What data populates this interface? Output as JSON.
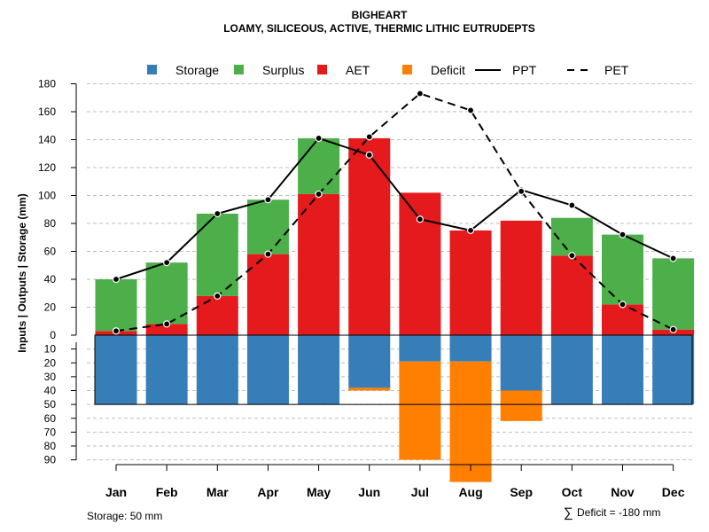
{
  "chart_data": {
    "type": "bar",
    "title": "BIGHEART",
    "subtitle": "LOAMY, SILICEOUS, ACTIVE, THERMIC LITHIC EUTRUDEPTS",
    "ylabel": "Inputs | Outputs | Storage    (mm)",
    "ylim_top": [
      0,
      180
    ],
    "ylim_bottom": [
      0,
      90
    ],
    "yticks_top": [
      "0",
      "20",
      "40",
      "60",
      "80",
      "100",
      "120",
      "140",
      "160",
      "180"
    ],
    "yticks_bottom": [
      "10",
      "20",
      "30",
      "40",
      "50",
      "60",
      "70",
      "80",
      "90"
    ],
    "categories": [
      "Jan",
      "Feb",
      "Mar",
      "Apr",
      "May",
      "Jun",
      "Jul",
      "Aug",
      "Sep",
      "Oct",
      "Nov",
      "Dec"
    ],
    "legend": [
      {
        "name": "Storage",
        "kind": "box",
        "color": "#377EB8"
      },
      {
        "name": "Surplus",
        "kind": "box",
        "color": "#4DAF4A"
      },
      {
        "name": "AET",
        "kind": "box",
        "color": "#E41A1C"
      },
      {
        "name": "Deficit",
        "kind": "box",
        "color": "#FF7F00"
      },
      {
        "name": "PPT",
        "kind": "line",
        "color": "#000000"
      },
      {
        "name": "PET",
        "kind": "dash",
        "color": "#000000"
      }
    ],
    "series": [
      {
        "name": "AET",
        "values": [
          3,
          8,
          28,
          58,
          101,
          141,
          102,
          75,
          82,
          57,
          22,
          4
        ]
      },
      {
        "name": "Surplus",
        "values": [
          37,
          44,
          59,
          39,
          40,
          0,
          0,
          0,
          0,
          27,
          50,
          51
        ]
      },
      {
        "name": "Storage",
        "values": [
          50,
          50,
          50,
          50,
          50,
          38,
          19,
          19,
          40,
          50,
          50,
          50
        ]
      },
      {
        "name": "Deficit",
        "values": [
          0,
          0,
          0,
          0,
          0,
          2,
          71,
          87,
          22,
          0,
          0,
          0
        ]
      },
      {
        "name": "PPT",
        "values": [
          40,
          52,
          87,
          97,
          141,
          129,
          83,
          75,
          104,
          93,
          72,
          55
        ]
      },
      {
        "name": "PET",
        "values": [
          3,
          8,
          28,
          58,
          101,
          142,
          173,
          161,
          103,
          57,
          22,
          4
        ]
      }
    ],
    "colors": {
      "storage": "#377EB8",
      "surplus": "#4DAF4A",
      "aet": "#E41A1C",
      "deficit": "#FF7F00",
      "grid": "#BEBEBE"
    }
  },
  "footer": {
    "storage_note": "Storage: 50 mm",
    "deficit_symbol": "∑",
    "deficit_note": "Deficit = -180 mm"
  }
}
